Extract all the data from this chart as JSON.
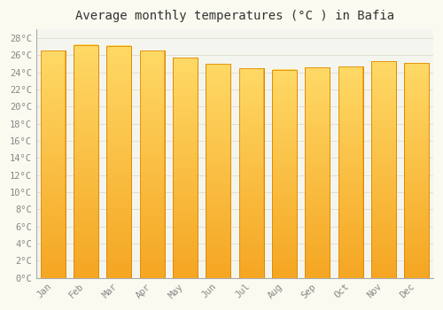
{
  "months": [
    "Jan",
    "Feb",
    "Mar",
    "Apr",
    "May",
    "Jun",
    "Jul",
    "Aug",
    "Sep",
    "Oct",
    "Nov",
    "Dec"
  ],
  "values": [
    26.5,
    27.2,
    27.1,
    26.5,
    25.7,
    25.0,
    24.5,
    24.3,
    24.6,
    24.7,
    25.3,
    25.1
  ],
  "title": "Average monthly temperatures (°C ) in Bafia",
  "ylim": [
    0,
    29
  ],
  "ytick_step": 2,
  "bar_color_bottom": "#F5A623",
  "bar_color_top": "#FFD966",
  "bar_edge_color": "#E08C00",
  "background_color": "#FAFAF0",
  "plot_bg_color": "#F5F5F0",
  "grid_color": "#DDDDCC",
  "title_fontsize": 10,
  "tick_fontsize": 7.5,
  "tick_color": "#888888",
  "font_family": "monospace"
}
